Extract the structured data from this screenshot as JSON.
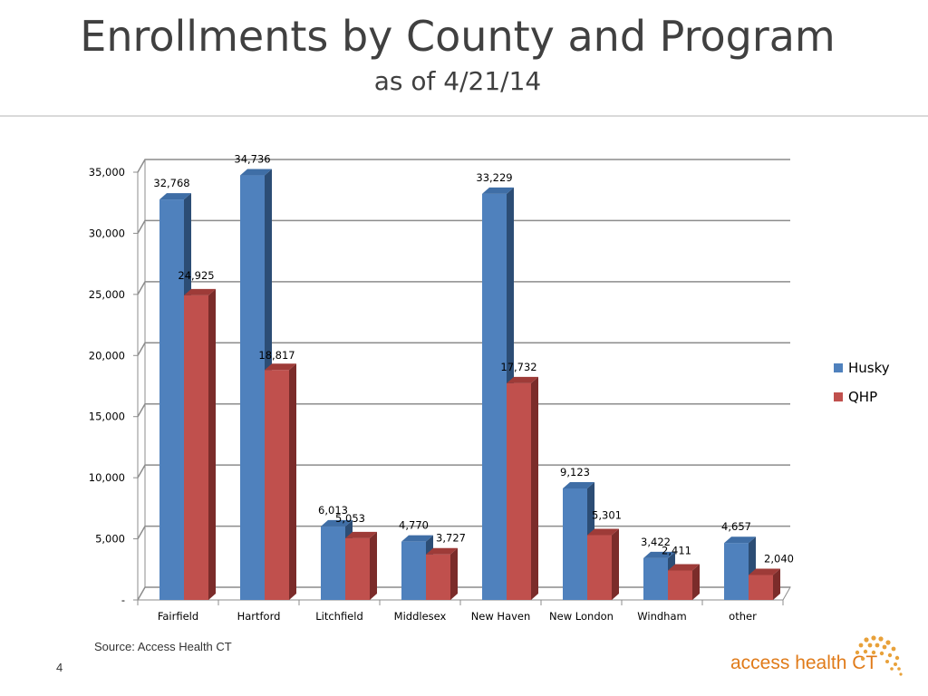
{
  "slide": {
    "title": "Enrollments by County and Program",
    "subtitle": "as of 4/21/14",
    "source": "Source: Access Health CT",
    "page_number": "4",
    "logo_text": "access health CT"
  },
  "colors": {
    "husky": "#4f81bd",
    "qhp": "#c0504d",
    "logo": "#e07b1a"
  },
  "chart_data": {
    "type": "bar",
    "title": "",
    "xlabel": "",
    "ylabel": "",
    "ylim": [
      0,
      35000
    ],
    "yticks": [
      {
        "value": 0,
        "label": "-"
      },
      {
        "value": 5000,
        "label": "5,000"
      },
      {
        "value": 10000,
        "label": "10,000"
      },
      {
        "value": 15000,
        "label": "15,000"
      },
      {
        "value": 20000,
        "label": "20,000"
      },
      {
        "value": 25000,
        "label": "25,000"
      },
      {
        "value": 30000,
        "label": "30,000"
      },
      {
        "value": 35000,
        "label": "35,000"
      }
    ],
    "categories": [
      "Fairfield",
      "Hartford",
      "Litchfield",
      "Middlesex",
      "New Haven",
      "New London",
      "Windham",
      "other"
    ],
    "series": [
      {
        "name": "Husky",
        "values": [
          32768,
          34736,
          6013,
          4770,
          33229,
          9123,
          3422,
          4657
        ],
        "labels": [
          "32,768",
          "34,736",
          "6,013",
          "4,770",
          "33,229",
          "9,123",
          "3,422",
          "4,657"
        ]
      },
      {
        "name": "QHP",
        "values": [
          24925,
          18817,
          5053,
          3727,
          17732,
          5301,
          2411,
          2040
        ],
        "labels": [
          "24,925",
          "18,817",
          "5,053",
          "3,727",
          "17,732",
          "5,301",
          "2,411",
          "2,040"
        ]
      }
    ],
    "grid": true,
    "legend": "right",
    "style": "3d-clustered-column"
  }
}
